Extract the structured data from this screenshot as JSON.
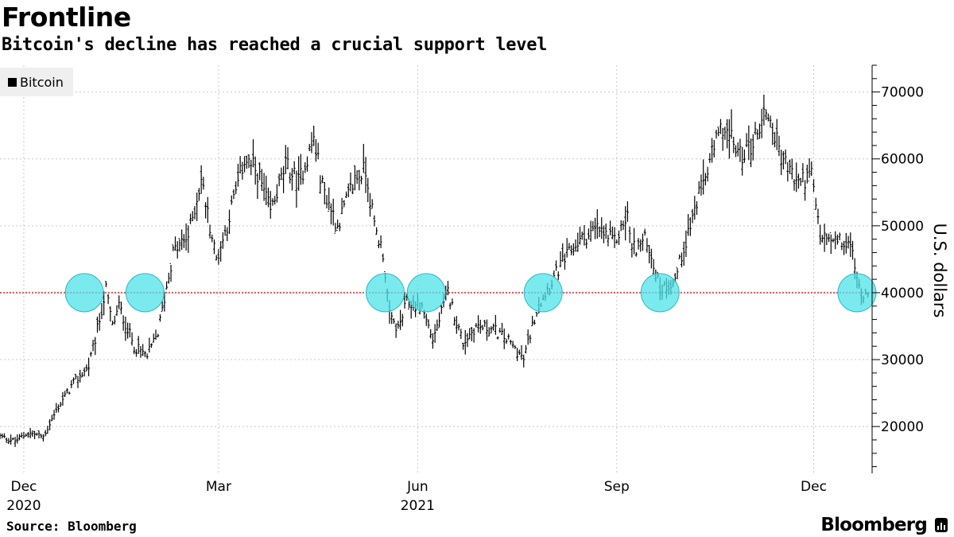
{
  "header": {
    "title": "Frontline",
    "subtitle": "Bitcoin's decline has reached a crucial support level"
  },
  "footer": {
    "source": "Source: Bloomberg",
    "brand": "Bloomberg"
  },
  "colors": {
    "series": "#000000",
    "support_line": "#e8565b",
    "highlight_fill": "#4fe3ea",
    "highlight_stroke": "#2ab8c4",
    "grid": "#c8c8c8",
    "legend_bg": "#efefef"
  },
  "chart_data": {
    "type": "line",
    "style": "daily high-low bars",
    "ylabel": "U.S. dollars",
    "ylim": [
      13000,
      74000
    ],
    "y_ticks": [
      20000,
      30000,
      40000,
      50000,
      60000,
      70000
    ],
    "y_axis_side": "right",
    "grid": "dotted vertical and horizontal",
    "legend": {
      "position": "top-left",
      "entries": [
        "Bitcoin"
      ]
    },
    "x_ticks": [
      {
        "label": "Dec",
        "sublabel": "2020",
        "date": "2020-12-01"
      },
      {
        "label": "Mar",
        "sublabel": "",
        "date": "2021-03-01"
      },
      {
        "label": "Jun",
        "sublabel": "2021",
        "date": "2021-06-01"
      },
      {
        "label": "Sep",
        "sublabel": "",
        "date": "2021-09-01"
      },
      {
        "label": "Dec",
        "sublabel": "",
        "date": "2021-12-01"
      }
    ],
    "xlim": [
      "2020-11-20",
      "2021-12-28"
    ],
    "support_level": 40000,
    "support_touches": [
      "2020-12-29",
      "2021-01-26",
      "2021-05-17",
      "2021-06-05",
      "2021-07-29",
      "2021-09-21",
      "2021-12-21"
    ],
    "series": [
      {
        "name": "Bitcoin",
        "points": [
          [
            "2020-11-20",
            18500
          ],
          [
            "2020-11-27",
            17800
          ],
          [
            "2020-12-03",
            19100
          ],
          [
            "2020-12-10",
            18500
          ],
          [
            "2020-12-17",
            23000
          ],
          [
            "2020-12-24",
            26500
          ],
          [
            "2020-12-31",
            29000
          ],
          [
            "2021-01-03",
            33000
          ],
          [
            "2021-01-08",
            40500
          ],
          [
            "2021-01-11",
            35000
          ],
          [
            "2021-01-14",
            38000
          ],
          [
            "2021-01-21",
            32000
          ],
          [
            "2021-01-27",
            30500
          ],
          [
            "2021-02-01",
            34000
          ],
          [
            "2021-02-08",
            46000
          ],
          [
            "2021-02-15",
            48500
          ],
          [
            "2021-02-21",
            57000
          ],
          [
            "2021-02-28",
            45000
          ],
          [
            "2021-03-04",
            49000
          ],
          [
            "2021-03-13",
            60000
          ],
          [
            "2021-03-19",
            58000
          ],
          [
            "2021-03-25",
            52000
          ],
          [
            "2021-04-01",
            59000
          ],
          [
            "2021-04-07",
            56500
          ],
          [
            "2021-04-14",
            63000
          ],
          [
            "2021-04-18",
            56000
          ],
          [
            "2021-04-25",
            50000
          ],
          [
            "2021-05-03",
            57000
          ],
          [
            "2021-05-08",
            58500
          ],
          [
            "2021-05-12",
            50000
          ],
          [
            "2021-05-16",
            46000
          ],
          [
            "2021-05-19",
            36500
          ],
          [
            "2021-05-23",
            34500
          ],
          [
            "2021-05-27",
            38500
          ],
          [
            "2021-06-03",
            38000
          ],
          [
            "2021-06-08",
            33000
          ],
          [
            "2021-06-15",
            40000
          ],
          [
            "2021-06-22",
            32500
          ],
          [
            "2021-06-28",
            35000
          ],
          [
            "2021-07-06",
            34500
          ],
          [
            "2021-07-13",
            32800
          ],
          [
            "2021-07-20",
            30000
          ],
          [
            "2021-07-26",
            37500
          ],
          [
            "2021-07-30",
            40000
          ],
          [
            "2021-08-07",
            44500
          ],
          [
            "2021-08-14",
            47500
          ],
          [
            "2021-08-23",
            49500
          ],
          [
            "2021-08-31",
            47500
          ],
          [
            "2021-09-06",
            51500
          ],
          [
            "2021-09-08",
            46500
          ],
          [
            "2021-09-15",
            48000
          ],
          [
            "2021-09-21",
            40500
          ],
          [
            "2021-09-28",
            42000
          ],
          [
            "2021-10-03",
            48000
          ],
          [
            "2021-10-10",
            55500
          ],
          [
            "2021-10-16",
            61500
          ],
          [
            "2021-10-20",
            65000
          ],
          [
            "2021-10-28",
            60500
          ],
          [
            "2021-11-03",
            62500
          ],
          [
            "2021-11-09",
            67500
          ],
          [
            "2021-11-16",
            60500
          ],
          [
            "2021-11-23",
            56500
          ],
          [
            "2021-11-30",
            57500
          ],
          [
            "2021-12-04",
            48500
          ],
          [
            "2021-12-10",
            47500
          ],
          [
            "2021-12-14",
            47500
          ],
          [
            "2021-12-19",
            46500
          ],
          [
            "2021-12-21",
            41500
          ],
          [
            "2021-12-24",
            39500
          ],
          [
            "2021-12-26",
            40500
          ]
        ]
      }
    ]
  }
}
